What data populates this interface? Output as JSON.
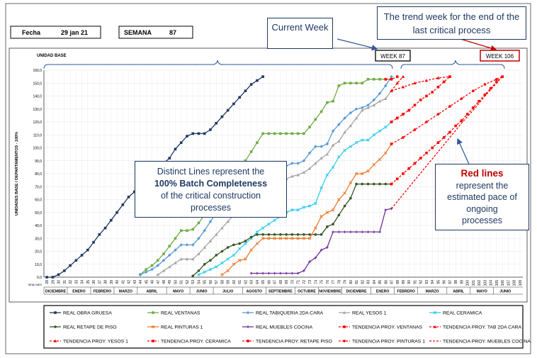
{
  "header": {
    "fecha_label": "Fecha",
    "fecha_value": "29 jan 21",
    "semana_label": "SEMANA",
    "semana_value": "87"
  },
  "callouts": {
    "current_week": "Current Week",
    "trend_week": "The trend week for the end of the last critical process",
    "week_87": "WEEK 87",
    "week_106": "WEEK 106",
    "distinct_1": "Distinct Lines represent the",
    "distinct_2": "100% Batch Completeness",
    "distinct_3": "of the critical  construction",
    "distinct_4": "processes",
    "red_1": "Red lines",
    "red_2": "represent the",
    "red_3": "estimated pace of",
    "red_4": "ongoing",
    "red_5": "processes"
  },
  "chart_data": {
    "type": "line",
    "title": "",
    "subtitle": "UNIDAD BASE",
    "ylabel": "UNIDADES BASE / DEPARTAMENTOS - 100%",
    "xlabel_corner": "SEM/ MES",
    "ylim": [
      0,
      160
    ],
    "xlim": [
      28,
      109
    ],
    "y_ticks": [
      "0,0",
      "10,0",
      "20,0",
      "30,0",
      "40,0",
      "50,0",
      "60,0",
      "70,0",
      "80,0",
      "90,0",
      "100,0",
      "110,0",
      "120,0",
      "130,0",
      "140,0",
      "150,0",
      "160,0"
    ],
    "x_ticks": [
      "28",
      "29",
      "30",
      "31",
      "32",
      "33",
      "34",
      "35",
      "36",
      "37",
      "38",
      "39",
      "40",
      "41",
      "42",
      "43",
      "44",
      "45",
      "46",
      "47",
      "48",
      "49",
      "50",
      "51",
      "52",
      "53",
      "54",
      "55",
      "56",
      "57",
      "58",
      "59",
      "60",
      "61",
      "62",
      "63",
      "64",
      "65",
      "66",
      "67",
      "68",
      "69",
      "70",
      "71",
      "72",
      "73",
      "74",
      "75",
      "76",
      "77",
      "78",
      "79",
      "80",
      "81",
      "82",
      "83",
      "84",
      "85",
      "86",
      "87",
      "88",
      "89",
      "90",
      "91",
      "92",
      "93",
      "94",
      "95",
      "96",
      "97",
      "98",
      "99",
      "100",
      "101",
      "102",
      "103",
      "104",
      "105",
      "106",
      "107",
      "108",
      "109"
    ],
    "months": [
      {
        "label": "DICIEMBRE",
        "from": 28,
        "to": 32
      },
      {
        "label": "ENERO",
        "from": 32,
        "to": 36
      },
      {
        "label": "FEBRERO",
        "from": 36,
        "to": 40
      },
      {
        "label": "MARZO",
        "from": 40,
        "to": 44
      },
      {
        "label": "ABRIL",
        "from": 44,
        "to": 49
      },
      {
        "label": "MAYO",
        "from": 49,
        "to": 53
      },
      {
        "label": "JUNIO",
        "from": 53,
        "to": 57
      },
      {
        "label": "JULIO",
        "from": 57,
        "to": 62
      },
      {
        "label": "AGOSTO",
        "from": 62,
        "to": 66
      },
      {
        "label": "SEPTIEMBRE",
        "from": 66,
        "to": 71
      },
      {
        "label": "OCTUBRE",
        "from": 71,
        "to": 75
      },
      {
        "label": "NOVIEMBRE",
        "from": 75,
        "to": 79
      },
      {
        "label": "DICIEMBRE",
        "from": 79,
        "to": 84
      },
      {
        "label": "ENERO",
        "from": 84,
        "to": 88
      },
      {
        "label": "FEBRERO",
        "from": 88,
        "to": 92
      },
      {
        "label": "MARZO",
        "from": 92,
        "to": 97
      },
      {
        "label": "ABRIL",
        "from": 97,
        "to": 101
      },
      {
        "label": "MAYO",
        "from": 101,
        "to": 105
      },
      {
        "label": "JUNIO",
        "from": 105,
        "to": 109
      }
    ],
    "grid": true,
    "legend_position": "bottom",
    "series": [
      {
        "name": "REAL OBRA GRUESA",
        "color": "#1f3864",
        "marker": "square",
        "dash": false,
        "x": [
          28,
          29,
          30,
          31,
          32,
          33,
          34,
          35,
          36,
          37,
          38,
          39,
          40,
          41,
          42,
          43,
          44,
          45,
          46,
          47,
          48,
          49,
          50,
          51,
          52,
          53,
          54,
          55,
          56,
          57,
          58,
          59,
          60,
          61,
          62,
          63,
          64,
          65
        ],
        "y": [
          0,
          0,
          2,
          5,
          9,
          13,
          17,
          21,
          27,
          33,
          38,
          44,
          50,
          56,
          62,
          66,
          70,
          74,
          79,
          84,
          88,
          92,
          99,
          104,
          109,
          111,
          111,
          111,
          114,
          119,
          124,
          129,
          134,
          139,
          144,
          149,
          152,
          155
        ]
      },
      {
        "name": "REAL VENTANAS",
        "color": "#70ad47",
        "marker": "square",
        "dash": false,
        "x": [
          44,
          45,
          46,
          47,
          48,
          49,
          50,
          51,
          52,
          53,
          54,
          55,
          56,
          57,
          58,
          59,
          60,
          61,
          62,
          63,
          64,
          65,
          66,
          67,
          68,
          69,
          70,
          71,
          72,
          73,
          74,
          75,
          76,
          77,
          78,
          79,
          80,
          81,
          82,
          83,
          84,
          85,
          86,
          87
        ],
        "y": [
          2,
          6,
          9,
          13,
          18,
          24,
          30,
          36,
          36,
          37,
          42,
          48,
          55,
          62,
          68,
          74,
          80,
          86,
          90,
          97,
          104,
          111,
          111,
          111,
          111,
          111,
          111,
          111,
          111,
          116,
          122,
          128,
          135,
          136,
          148,
          150,
          150,
          150,
          150,
          153,
          153,
          153,
          153,
          153
        ]
      },
      {
        "name": "REAL TABIQUERIA 2DA CARA",
        "color": "#5b9bd5",
        "marker": "diamond",
        "dash": false,
        "x": [
          44,
          45,
          46,
          47,
          48,
          49,
          50,
          51,
          52,
          53,
          54,
          55,
          56,
          57,
          58,
          59,
          60,
          61,
          62,
          63,
          64,
          65,
          66,
          67,
          68,
          69,
          70,
          71,
          72,
          73,
          74,
          75,
          76,
          77,
          78,
          79,
          80,
          81,
          82,
          83,
          84,
          85,
          86,
          87
        ],
        "y": [
          2,
          4,
          6,
          9,
          13,
          17,
          21,
          25,
          25,
          25,
          30,
          36,
          43,
          50,
          56,
          60,
          64,
          68,
          72,
          74,
          76,
          78,
          80,
          82,
          84,
          86,
          88,
          88,
          90,
          96,
          101,
          101,
          103,
          113,
          118,
          123,
          127,
          130,
          131,
          133,
          137,
          142,
          148,
          155
        ]
      },
      {
        "name": "REAL YESOS 1",
        "color": "#a5a5a5",
        "marker": "triangle",
        "dash": false,
        "x": [
          47,
          48,
          49,
          50,
          51,
          52,
          53,
          54,
          55,
          56,
          57,
          58,
          59,
          60,
          61,
          62,
          63,
          64,
          65,
          66,
          67,
          68,
          69,
          70,
          71,
          72,
          73,
          74,
          75,
          76,
          77,
          78,
          79,
          80,
          81,
          82,
          83,
          84,
          85,
          86,
          87
        ],
        "y": [
          2,
          5,
          8,
          11,
          14,
          14,
          14,
          18,
          23,
          28,
          33,
          38,
          43,
          48,
          52,
          56,
          60,
          63,
          66,
          68,
          71,
          74,
          76,
          78,
          79,
          81,
          84,
          88,
          92,
          95,
          102,
          105,
          112,
          117,
          123,
          129,
          131,
          133,
          136,
          138,
          144
        ]
      },
      {
        "name": "REAL CERAMICA",
        "color": "#33ccee",
        "marker": "x",
        "dash": false,
        "x": [
          54,
          55,
          56,
          57,
          58,
          59,
          60,
          61,
          62,
          63,
          64,
          65,
          66,
          67,
          68,
          69,
          70,
          71,
          72,
          73,
          74,
          75,
          76,
          77,
          78,
          79,
          80,
          81,
          82,
          83,
          84,
          85,
          86,
          87
        ],
        "y": [
          2,
          4,
          6,
          8,
          11,
          14,
          17,
          22,
          26,
          30,
          35,
          38,
          41,
          44,
          47,
          50,
          52,
          52,
          54,
          55,
          57,
          69,
          79,
          85,
          93,
          98,
          101,
          104,
          106,
          106,
          110,
          113,
          116,
          120
        ]
      },
      {
        "name": "REAL RETAPE DE PISO",
        "color": "#375623",
        "marker": "circle",
        "dash": false,
        "x": [
          53,
          54,
          55,
          56,
          57,
          58,
          59,
          60,
          61,
          62,
          63,
          64,
          65,
          66,
          67,
          68,
          69,
          70,
          71,
          72,
          73,
          74,
          75,
          76,
          77,
          78,
          79,
          80,
          81,
          82,
          83,
          84,
          85,
          86,
          87
        ],
        "y": [
          1,
          5,
          10,
          13,
          17,
          20,
          23,
          25,
          26,
          28,
          31,
          33,
          33,
          33,
          33,
          33,
          33,
          33,
          33,
          33,
          33,
          33,
          33,
          39,
          41,
          48,
          55,
          61,
          72,
          72,
          72,
          72,
          72,
          72,
          72
        ]
      },
      {
        "name": "REAL PINTURAS 1",
        "color": "#ed7d31",
        "marker": "x",
        "dash": false,
        "x": [
          58,
          59,
          60,
          61,
          62,
          63,
          64,
          65,
          66,
          67,
          68,
          69,
          70,
          71,
          72,
          73,
          74,
          75,
          76,
          77,
          78,
          79,
          80,
          81,
          82,
          83,
          84,
          85,
          86,
          87
        ],
        "y": [
          2,
          5,
          10,
          13,
          14,
          21,
          26,
          30,
          30,
          30,
          30,
          30,
          30,
          30,
          30,
          30,
          38,
          47,
          50,
          52,
          60,
          65,
          73,
          80,
          80,
          82,
          87,
          91,
          96,
          103
        ]
      },
      {
        "name": "REAL MUEBLES COCINA",
        "color": "#7030a0",
        "marker": "plus",
        "dash": false,
        "x": [
          63,
          64,
          65,
          66,
          67,
          68,
          69,
          70,
          71,
          72,
          73,
          74,
          75,
          76,
          77,
          78,
          79,
          80,
          81,
          82,
          83,
          84,
          85,
          86,
          87
        ],
        "y": [
          3,
          3,
          3,
          3,
          3,
          3,
          3,
          3,
          3,
          5,
          12,
          15,
          21,
          23,
          35,
          35,
          35,
          35,
          35,
          35,
          35,
          35,
          35,
          52,
          53
        ]
      },
      {
        "name": "TENDENCIA PROY. VENTANAS",
        "color": "#ff0000",
        "marker": "square",
        "dash": true,
        "x": [
          86,
          87,
          88
        ],
        "y": [
          153,
          153,
          155
        ]
      },
      {
        "name": "TENDENCIA PROY. TAB 2DA CARA",
        "color": "#ff0000",
        "marker": "triangle",
        "dash": true,
        "x": [
          87,
          88,
          89
        ],
        "y": [
          144,
          150,
          155
        ]
      },
      {
        "name": "TENDENCIA PROY. YESOS 1",
        "color": "#ff0000",
        "marker": "triangle",
        "dash": true,
        "x": [
          87,
          89,
          91,
          93,
          95,
          97
        ],
        "y": [
          144,
          147,
          150,
          152,
          154,
          155
        ]
      },
      {
        "name": "TENDENCIA PROY. CERAMICA",
        "color": "#ff0000",
        "marker": "square",
        "dash": true,
        "x": [
          87,
          88,
          89,
          90,
          91,
          92,
          93,
          94,
          95,
          96,
          97
        ],
        "y": [
          120,
          123,
          126,
          129,
          133,
          137,
          140,
          143,
          147,
          151,
          155
        ]
      },
      {
        "name": "TENDENCIA PROY. RETAPE PISO",
        "color": "#ff0000",
        "marker": "square",
        "dash": true,
        "x": [
          87,
          88,
          89,
          90,
          91,
          92,
          93,
          94,
          95,
          96,
          97,
          98,
          99,
          100,
          101,
          102,
          103,
          104,
          105,
          106
        ],
        "y": [
          72,
          76,
          80,
          84,
          88,
          92,
          96,
          100,
          104,
          108,
          112,
          117,
          121,
          126,
          131,
          136,
          141,
          146,
          151,
          155
        ]
      },
      {
        "name": "TENDENCIA PROY. PINTURAS 1",
        "color": "#ff0000",
        "marker": "dot",
        "dash": true,
        "x": [
          87,
          89,
          91,
          93,
          95,
          97,
          99,
          101,
          103,
          105,
          106
        ],
        "y": [
          103,
          108,
          114,
          120,
          126,
          132,
          138,
          144,
          149,
          153,
          155
        ]
      },
      {
        "name": "TENDENCIA PROY. MUEBLES COCINA",
        "color": "#ff0000",
        "marker": "none",
        "dash": true,
        "x": [
          87,
          89,
          91,
          93,
          95,
          97,
          99,
          101,
          103,
          105,
          106
        ],
        "y": [
          53,
          64,
          75,
          86,
          97,
          108,
          119,
          129,
          140,
          150,
          155
        ]
      }
    ]
  }
}
